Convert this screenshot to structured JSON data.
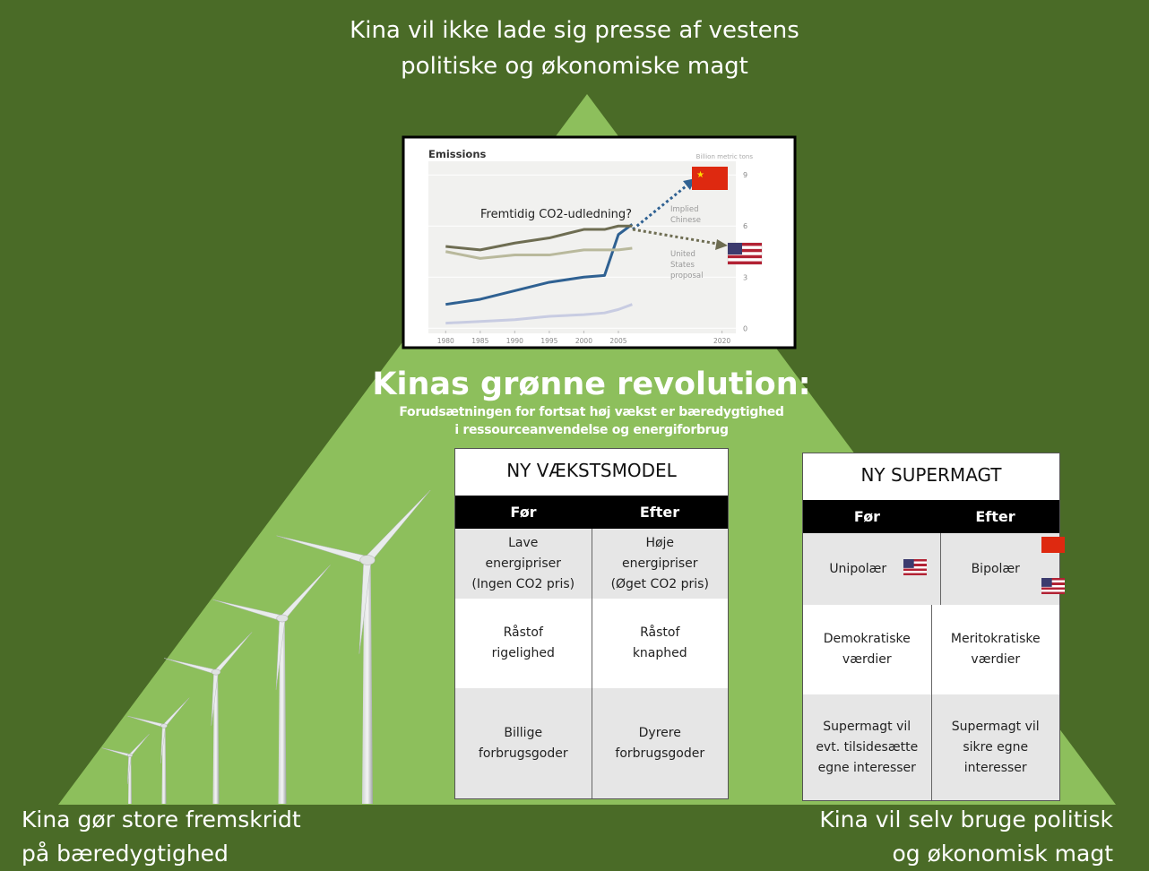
{
  "top_text": {
    "lines": [
      "Kina vil ikke lade sig presse af vestens",
      "politiske og økonomiske magt"
    ]
  },
  "heading": {
    "title": "Kinas grønne revolution:",
    "subtitle_lines": [
      "Forudsætningen for fortsat høj vækst er bæredygtighed",
      "i ressourceanvendelse og energiforbrug"
    ]
  },
  "bottom_left": {
    "lines": [
      "Kina gør store fremskridt",
      "på bæredygtighed"
    ]
  },
  "bottom_right": {
    "lines": [
      "Kina vil selv bruge politisk",
      "og økonomisk magt"
    ]
  },
  "emissions_chart": {
    "type": "line",
    "title": "Emissions",
    "unit_label": "Billion metric tons",
    "annotation": "Fremtidig CO2-udledning?",
    "labels": [
      [
        "Implied",
        "Chinese"
      ],
      [
        "United",
        "States",
        "proposal"
      ]
    ],
    "x": [
      1980,
      1985,
      1990,
      1995,
      2000,
      2003,
      2005,
      2007
    ],
    "series": [
      {
        "color": "#2f6192",
        "values": [
          1.4,
          1.7,
          2.2,
          2.7,
          3.0,
          3.1,
          5.5,
          6.1
        ]
      },
      {
        "color": "#6e6d52",
        "values": [
          4.8,
          4.6,
          5.0,
          5.3,
          5.8,
          5.8,
          6.0,
          6.0
        ]
      },
      {
        "color": "#b9b99c",
        "values": [
          4.5,
          4.1,
          4.3,
          4.3,
          4.6,
          4.6,
          4.6,
          4.7
        ]
      },
      {
        "color": "#c8cce2",
        "values": [
          0.3,
          0.4,
          0.5,
          0.7,
          0.8,
          0.9,
          1.1,
          1.4
        ]
      }
    ],
    "xlim": [
      1977.5,
      2022
    ],
    "xticks": [
      1980,
      1985,
      1990,
      1995,
      2000,
      2005,
      2020
    ],
    "ylim": [
      -0.3,
      9.8
    ],
    "yticks": [
      0,
      3,
      6,
      9
    ]
  },
  "tables": [
    {
      "title": "NY VÆKSTSMODEL",
      "columns": [
        "Før",
        "Efter"
      ],
      "rows": [
        [
          [
            "Lave",
            "energipriser",
            "(Ingen CO2 pris)"
          ],
          [
            "Høje",
            "energipriser",
            "(Øget CO2 pris)"
          ]
        ],
        [
          [
            "Råstof",
            "rigelighed"
          ],
          [
            "Råstof",
            "knaphed"
          ]
        ],
        [
          [
            "Billige",
            "forbrugsgoder"
          ],
          [
            "Dyrere",
            "forbrugsgoder"
          ]
        ]
      ]
    },
    {
      "title": "NY SUPERMAGT",
      "columns": [
        "Før",
        "Efter"
      ],
      "rows": [
        [
          [
            "Unipolær"
          ],
          [
            "Bipolær"
          ]
        ],
        [
          [
            "Demokratiske",
            "værdier"
          ],
          [
            "Meritokratiske",
            "værdier"
          ]
        ],
        [
          [
            "Supermagt vil",
            "evt. tilsidesætte",
            "egne interesser"
          ],
          [
            "Supermagt vil",
            "sikre egne",
            "interesser"
          ]
        ]
      ]
    }
  ]
}
